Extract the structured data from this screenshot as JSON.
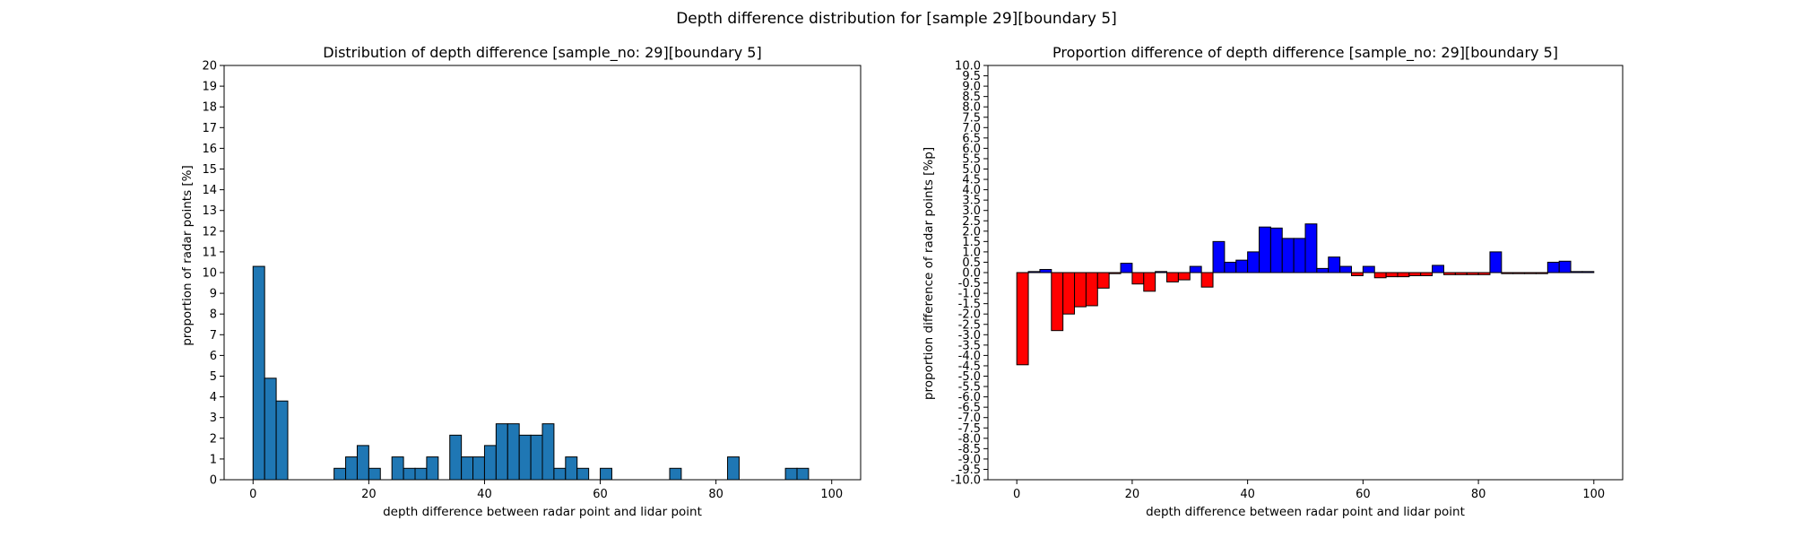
{
  "figure": {
    "title": "Depth difference distribution for [sample 29][boundary 5]"
  },
  "chart_data": [
    {
      "type": "bar",
      "title": "Distribution of depth difference [sample_no: 29][boundary 5]",
      "xlabel": "depth difference between radar point and lidar point",
      "ylabel": "proportion of radar points [%]",
      "xlim": [
        -5,
        105
      ],
      "ylim": [
        0,
        20
      ],
      "bin_width": 2,
      "x_ticks": [
        0,
        20,
        40,
        60,
        80,
        100
      ],
      "y_ticks": [
        0,
        1,
        2,
        3,
        4,
        5,
        6,
        7,
        8,
        9,
        10,
        11,
        12,
        13,
        14,
        15,
        16,
        17,
        18,
        19,
        20
      ],
      "grid": false,
      "colors": {
        "bar_fill": "#1f77b4",
        "bar_edge": "#000000"
      },
      "series": [
        {
          "bin_left": [
            0,
            2,
            4,
            14,
            16,
            18,
            20,
            24,
            26,
            28,
            30,
            34,
            36,
            38,
            40,
            42,
            44,
            46,
            48,
            50,
            52,
            54,
            56,
            60,
            72,
            82,
            92,
            94
          ],
          "values": [
            10.3,
            4.9,
            3.8,
            0.55,
            1.1,
            1.65,
            0.55,
            1.1,
            0.55,
            0.55,
            1.1,
            2.15,
            1.1,
            1.1,
            1.65,
            2.7,
            2.7,
            2.15,
            2.15,
            2.7,
            0.55,
            1.1,
            0.55,
            0.55,
            0.55,
            1.1,
            0.55,
            0.55
          ]
        }
      ]
    },
    {
      "type": "bar",
      "title": "Proportion difference of depth difference [sample_no: 29][boundary 5]",
      "xlabel": "depth difference between radar point and lidar point",
      "ylabel": "proportion difference of radar points [%p]",
      "xlim": [
        -5,
        105
      ],
      "ylim": [
        -10,
        10
      ],
      "bin_width": 2,
      "x_ticks": [
        0,
        20,
        40,
        60,
        80,
        100
      ],
      "y_ticks": [
        "-10.0",
        "-9.5",
        "-9.0",
        "-8.5",
        "-8.0",
        "-7.5",
        "-7.0",
        "-6.5",
        "-6.0",
        "-5.5",
        "-5.0",
        "-4.5",
        "-4.0",
        "-3.5",
        "-3.0",
        "-2.5",
        "-2.0",
        "-1.5",
        "-1.0",
        "-0.5",
        "0.0",
        "0.5",
        "1.0",
        "1.5",
        "2.0",
        "2.5",
        "3.0",
        "3.5",
        "4.0",
        "4.5",
        "5.0",
        "5.5",
        "6.0",
        "6.5",
        "7.0",
        "7.5",
        "8.0",
        "8.5",
        "9.0",
        "9.5",
        "10.0"
      ],
      "grid": false,
      "colors": {
        "positive": "#0000ff",
        "negative": "#ff0000",
        "bar_edge": "#000000"
      },
      "series": [
        {
          "bin_left": [
            0,
            2,
            4,
            6,
            8,
            10,
            12,
            14,
            16,
            18,
            20,
            22,
            24,
            26,
            28,
            30,
            32,
            34,
            36,
            38,
            40,
            42,
            44,
            46,
            48,
            50,
            52,
            54,
            56,
            58,
            60,
            62,
            64,
            66,
            68,
            70,
            72,
            74,
            76,
            78,
            80,
            82,
            84,
            86,
            88,
            90,
            92,
            94,
            96,
            98
          ],
          "values": [
            -4.45,
            0.05,
            0.15,
            -2.8,
            -2.0,
            -1.65,
            -1.6,
            -0.75,
            -0.05,
            0.45,
            -0.55,
            -0.9,
            0.05,
            -0.45,
            -0.35,
            0.3,
            -0.7,
            1.5,
            0.5,
            0.6,
            1.0,
            2.2,
            2.15,
            1.65,
            1.65,
            2.35,
            0.2,
            0.75,
            0.3,
            -0.15,
            0.3,
            -0.25,
            -0.2,
            -0.2,
            -0.15,
            -0.15,
            0.35,
            -0.1,
            -0.1,
            -0.1,
            -0.1,
            1.0,
            -0.05,
            -0.05,
            -0.05,
            -0.05,
            0.5,
            0.55,
            0.05,
            0.05
          ]
        }
      ]
    }
  ]
}
